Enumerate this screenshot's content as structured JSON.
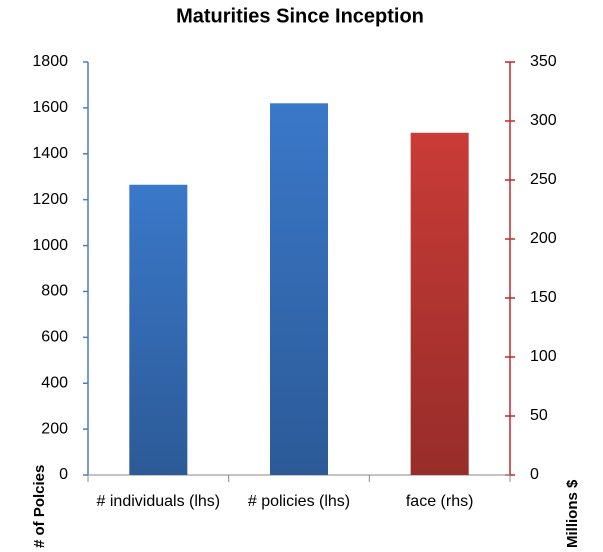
{
  "chart_data": {
    "type": "bar",
    "title": "Maturities Since Inception",
    "categories": [
      "# individuals (lhs)",
      "# policies (lhs)",
      "face (rhs)"
    ],
    "series": [
      {
        "color": "#3a78c9",
        "values": [
          1265,
          1620,
          null
        ]
      },
      {
        "color": "#c93b37",
        "axis": "y2",
        "values": [
          null,
          null,
          290
        ]
      }
    ],
    "ylabel": "# of Polcies",
    "y2label": "Millions $",
    "ylim": [
      0,
      1800
    ],
    "yticks": [
      0,
      200,
      400,
      600,
      800,
      1000,
      1200,
      1400,
      1600,
      1800
    ],
    "y2lim": [
      0,
      350
    ],
    "y2ticks": [
      0,
      50,
      100,
      150,
      200,
      250,
      300,
      350
    ],
    "yaxis_color": "#4a7ebb",
    "y2axis_color": "#c0282a"
  }
}
